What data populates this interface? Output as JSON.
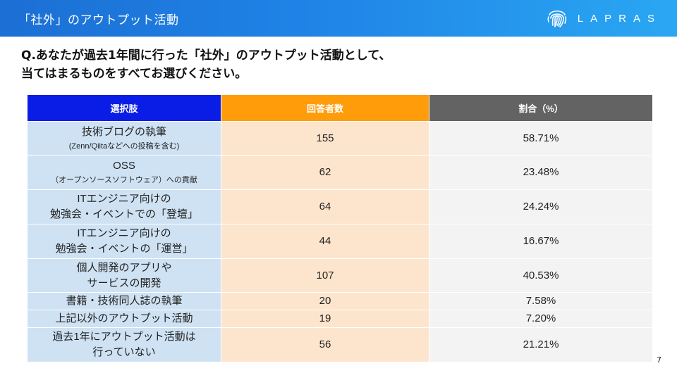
{
  "header": {
    "title": "「社外」のアウトプット活動",
    "logo_text": "LAPRAS",
    "colors": {
      "gradient_start": "#1c6fd4",
      "gradient_end": "#2aa7f2"
    }
  },
  "question": {
    "line1": "Q.あなたが過去1年間に行った「社外」のアウトプット活動として、",
    "line2": "当てはまるものをすべてお選びください。"
  },
  "table": {
    "headers": [
      "選択肢",
      "回答者数",
      "割合（%）"
    ],
    "header_colors": [
      "#0a1de6",
      "#ff9c09",
      "#636363"
    ],
    "rows": [
      {
        "label1": "技術ブログの執筆",
        "label2": "(Zenn/Qiitaなどへの投稿を含む)",
        "count": "155",
        "pct": "58.71%"
      },
      {
        "label1": "OSS",
        "label2": "（オープンソースソフトウェア）への貢献",
        "count": "62",
        "pct": "23.48%"
      },
      {
        "label1": "ITエンジニア向けの",
        "label2": "勉強会・イベントでの「登壇」",
        "count": "64",
        "pct": "24.24%"
      },
      {
        "label1": "ITエンジニア向けの",
        "label2": "勉強会・イベントの「運営」",
        "count": "44",
        "pct": "16.67%"
      },
      {
        "label1": "個人開発のアプリや",
        "label2": "サービスの開発",
        "count": "107",
        "pct": "40.53%"
      },
      {
        "label1": "書籍・技術同人誌の執筆",
        "label2": "",
        "count": "20",
        "pct": "7.58%"
      },
      {
        "label1": "上記以外のアウトプット活動",
        "label2": "",
        "count": "19",
        "pct": "7.20%"
      },
      {
        "label1": "過去1年にアウトプット活動は",
        "label2": "行っていない",
        "count": "56",
        "pct": "21.21%"
      }
    ]
  },
  "page_number": "7",
  "icons": {
    "logo": "fingerprint-icon"
  }
}
